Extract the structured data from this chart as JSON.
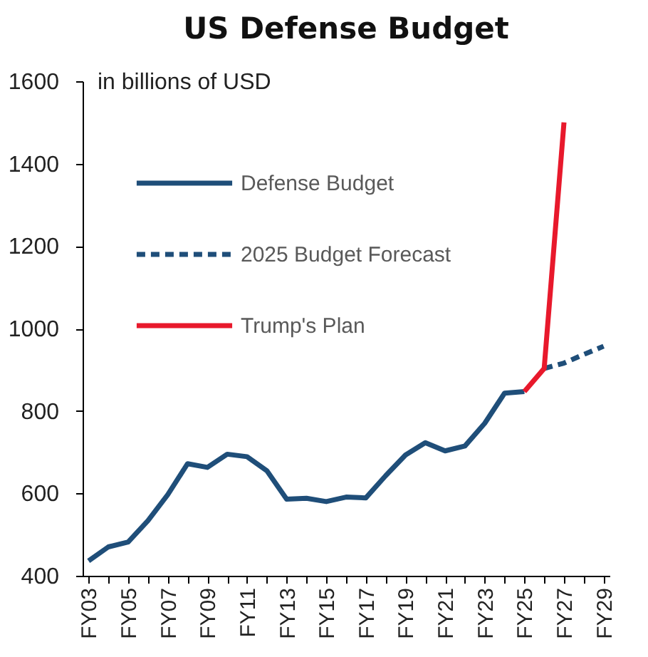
{
  "chart_data": {
    "type": "line",
    "title": "US Defense Budget",
    "ylabel": "in billions of USD",
    "categories": [
      "FY03",
      null,
      "FY05",
      null,
      "FY07",
      null,
      "FY09",
      null,
      "FY11",
      null,
      "FY13",
      null,
      "FY15",
      null,
      "FY17",
      null,
      "FY19",
      null,
      "FY21",
      null,
      "FY23",
      null,
      "FY25",
      null,
      "FY27",
      null,
      "FY29"
    ],
    "series": [
      {
        "name": "Defense Budget",
        "color": "#1f4e79",
        "line_style": "solid",
        "values": [
          436,
          470,
          482,
          534,
          597,
          672,
          663,
          695,
          689,
          655,
          586,
          588,
          580,
          591,
          589,
          643,
          693,
          723,
          703,
          715,
          770,
          843,
          847,
          null,
          null,
          null,
          null
        ]
      },
      {
        "name": "2025 Budget Forecast",
        "color": "#1f4e79",
        "line_style": "dashed",
        "values": [
          null,
          null,
          null,
          null,
          null,
          null,
          null,
          null,
          null,
          null,
          null,
          null,
          null,
          null,
          null,
          null,
          null,
          null,
          null,
          null,
          null,
          null,
          null,
          903,
          916,
          937,
          957
        ]
      },
      {
        "name": "Trump's Plan",
        "color": "#e8192c",
        "line_style": "solid",
        "values": [
          null,
          null,
          null,
          null,
          null,
          null,
          null,
          null,
          null,
          null,
          null,
          null,
          null,
          null,
          null,
          null,
          null,
          null,
          null,
          null,
          null,
          null,
          847,
          903,
          1500,
          null,
          null
        ]
      }
    ],
    "ylim": [
      400,
      1600
    ],
    "yticks": [
      400,
      600,
      800,
      1000,
      1200,
      1400,
      1600
    ],
    "grid": false,
    "legend": "top left",
    "marker": "none"
  }
}
